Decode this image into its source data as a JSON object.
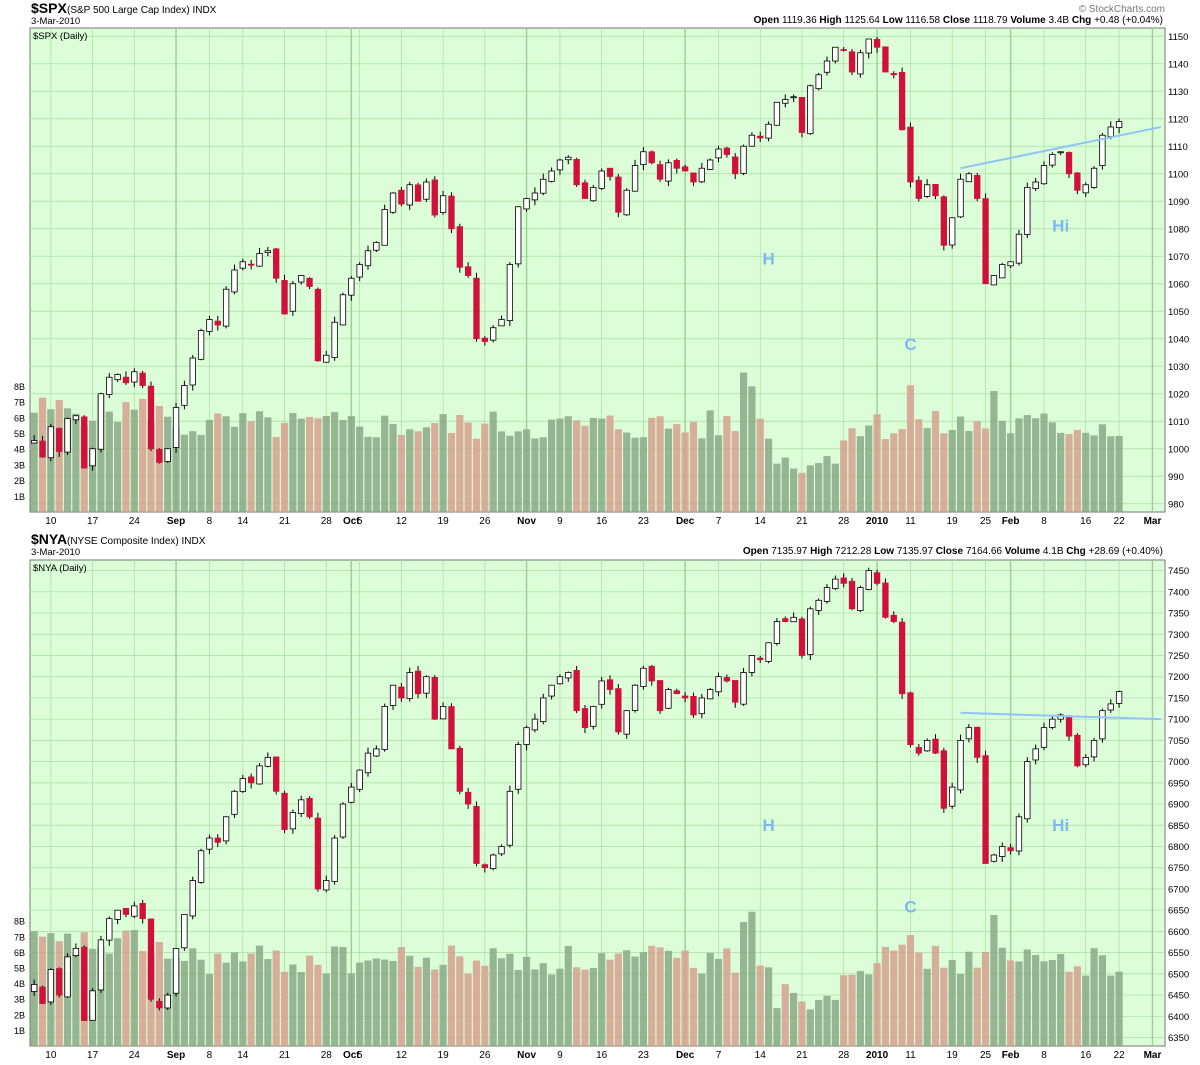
{
  "watermark": "© StockCharts.com",
  "colors": {
    "plot_bg": "#dbfdd7",
    "grid": "#a8dea0",
    "up_candle": "#ffffff",
    "down_candle": "#d1103c",
    "vol_up": "#8aa886",
    "vol_down": "#d6a08f",
    "trendline": "#8fc4f5",
    "annotation": "#7fb6ef"
  },
  "panels": [
    {
      "symbol": "$SPX",
      "name": "(S&P 500 Large Cap Index)",
      "exchange": "INDX",
      "date": "3-Mar-2010",
      "legend": "$SPX (Daily)",
      "quote": [
        {
          "label": "Open",
          "value": "1119.36"
        },
        {
          "label": "High",
          "value": "1125.64"
        },
        {
          "label": "Low",
          "value": "1116.58"
        },
        {
          "label": "Close",
          "value": "1118.79"
        },
        {
          "label": "Volume",
          "value": "3.4B"
        },
        {
          "label": "Chg",
          "value": "+0.48 (+0.04%)"
        }
      ],
      "annotations": [
        {
          "text": "H",
          "x": 88,
          "price": 1067
        },
        {
          "text": "C",
          "x": 105,
          "price": 1036
        },
        {
          "text": "Hi",
          "x": 123,
          "price": 1079
        }
      ]
    },
    {
      "symbol": "$NYA",
      "name": "(NYSE Composite Index)",
      "exchange": "INDX",
      "date": "3-Mar-2010",
      "legend": "$NYA (Daily)",
      "quote": [
        {
          "label": "Open",
          "value": "7135.97"
        },
        {
          "label": "High",
          "value": "7212.28"
        },
        {
          "label": "Low",
          "value": "7135.97"
        },
        {
          "label": "Close",
          "value": "7164.66"
        },
        {
          "label": "Volume",
          "value": "4.1B"
        },
        {
          "label": "Chg",
          "value": "+28.69 (+0.40%)"
        }
      ],
      "annotations": [
        {
          "text": "H",
          "x": 88,
          "price": 6837
        },
        {
          "text": "C",
          "x": 105,
          "price": 6645
        },
        {
          "text": "Hi",
          "x": 123,
          "price": 6837
        }
      ]
    }
  ],
  "chart_data": [
    {
      "type": "candlestick",
      "symbol": "$SPX",
      "x_tick_labels": [
        "10",
        "17",
        "24",
        "Sep",
        "8",
        "14",
        "21",
        "28",
        "Oct",
        "5",
        "12",
        "19",
        "26",
        "Nov",
        "9",
        "16",
        "23",
        "Dec",
        "7",
        "14",
        "21",
        "28",
        "2010",
        "11",
        "19",
        "25",
        "Feb",
        "8",
        "16",
        "22",
        "Mar"
      ],
      "x_tick_positions": [
        2,
        7,
        12,
        17,
        21,
        25,
        30,
        35,
        38,
        39,
        44,
        49,
        54,
        59,
        63,
        68,
        73,
        78,
        82,
        87,
        92,
        97,
        101,
        105,
        110,
        114,
        117,
        121,
        126,
        130,
        134
      ],
      "major_ticks": [
        "Sep",
        "Oct",
        "Nov",
        "Dec",
        "2010",
        "Feb",
        "Mar"
      ],
      "y_ticks": [
        980,
        990,
        1000,
        1010,
        1020,
        1030,
        1040,
        1050,
        1060,
        1070,
        1080,
        1090,
        1100,
        1110,
        1120,
        1130,
        1140,
        1150
      ],
      "ylim": [
        977,
        1153
      ],
      "volume_ticks": [
        "1B",
        "2B",
        "3B",
        "4B",
        "5B",
        "6B",
        "7B",
        "8B"
      ],
      "volume_max": 10,
      "trendline": [
        {
          "x": 111,
          "price": 1102
        },
        {
          "x": 135,
          "price": 1117
        }
      ],
      "closes": [
        1003,
        997,
        1008,
        999,
        1011,
        1012,
        993,
        1000,
        1020,
        1026,
        1027,
        1024,
        1028,
        1023,
        1000,
        995,
        1000,
        1015,
        1023,
        1033,
        1043,
        1047,
        1045,
        1058,
        1065,
        1068,
        1067,
        1071,
        1072,
        1062,
        1049,
        1060,
        1063,
        1059,
        1032,
        1034,
        1046,
        1056,
        1062,
        1067,
        1072,
        1075,
        1087,
        1093,
        1089,
        1096,
        1090,
        1097,
        1085,
        1092,
        1080,
        1066,
        1063,
        1040,
        1039,
        1044,
        1047,
        1067,
        1088,
        1091,
        1093,
        1098,
        1101,
        1105,
        1106,
        1096,
        1091,
        1095,
        1101,
        1099,
        1086,
        1094,
        1103,
        1108,
        1104,
        1098,
        1104,
        1102,
        1101,
        1097,
        1102,
        1105,
        1109,
        1107,
        1100,
        1110,
        1114,
        1113,
        1118,
        1126,
        1127,
        1128,
        1115,
        1132,
        1136,
        1141,
        1146,
        1145,
        1137,
        1144,
        1149,
        1146,
        1137,
        1136,
        1116,
        1097,
        1091,
        1096,
        1092,
        1074,
        1084,
        1098,
        1100,
        1091,
        1060,
        1063,
        1067,
        1068,
        1078,
        1095,
        1097,
        1103,
        1107,
        1108,
        1100,
        1094,
        1096,
        1102,
        1114,
        1117,
        1119
      ]
    },
    {
      "type": "candlestick",
      "symbol": "$NYA",
      "x_tick_labels": [
        "10",
        "17",
        "24",
        "Sep",
        "8",
        "14",
        "21",
        "28",
        "Oct",
        "5",
        "12",
        "19",
        "26",
        "Nov",
        "9",
        "16",
        "23",
        "Dec",
        "7",
        "14",
        "21",
        "28",
        "2010",
        "11",
        "19",
        "25",
        "Feb",
        "8",
        "16",
        "22",
        "Mar"
      ],
      "x_tick_positions": [
        2,
        7,
        12,
        17,
        21,
        25,
        30,
        35,
        38,
        39,
        44,
        49,
        54,
        59,
        63,
        68,
        73,
        78,
        82,
        87,
        92,
        97,
        101,
        105,
        110,
        114,
        117,
        121,
        126,
        130,
        134
      ],
      "major_ticks": [
        "Sep",
        "Oct",
        "Nov",
        "Dec",
        "2010",
        "Feb",
        "Mar"
      ],
      "y_ticks": [
        6350,
        6400,
        6450,
        6500,
        6550,
        6600,
        6650,
        6700,
        6750,
        6800,
        6850,
        6900,
        6950,
        7000,
        7050,
        7100,
        7150,
        7200,
        7250,
        7300,
        7350,
        7400,
        7450
      ],
      "ylim": [
        6330,
        7475
      ],
      "volume_ticks": [
        "1B",
        "2B",
        "3B",
        "4B",
        "5B",
        "6B",
        "7B",
        "8B"
      ],
      "volume_max": 10,
      "trendline": [
        {
          "x": 111,
          "price": 7115
        },
        {
          "x": 135,
          "price": 7100
        }
      ],
      "closes": [
        6475,
        6430,
        6510,
        6450,
        6540,
        6560,
        6390,
        6460,
        6580,
        6630,
        6650,
        6640,
        6660,
        6630,
        6440,
        6420,
        6450,
        6560,
        6640,
        6720,
        6790,
        6820,
        6810,
        6870,
        6930,
        6960,
        6950,
        6990,
        7010,
        6930,
        6840,
        6880,
        6910,
        6870,
        6700,
        6720,
        6820,
        6900,
        6940,
        6980,
        7020,
        7030,
        7130,
        7180,
        7150,
        7210,
        7160,
        7200,
        7100,
        7130,
        7030,
        6930,
        6900,
        6760,
        6750,
        6780,
        6800,
        6930,
        7040,
        7080,
        7100,
        7150,
        7180,
        7200,
        7210,
        7120,
        7080,
        7130,
        7190,
        7170,
        7070,
        7120,
        7180,
        7220,
        7190,
        7120,
        7170,
        7160,
        7150,
        7110,
        7150,
        7170,
        7200,
        7190,
        7140,
        7210,
        7250,
        7240,
        7280,
        7330,
        7330,
        7340,
        7250,
        7360,
        7380,
        7410,
        7430,
        7420,
        7360,
        7410,
        7450,
        7420,
        7340,
        7330,
        7160,
        7040,
        7020,
        7050,
        7020,
        6890,
        6940,
        7050,
        7080,
        7010,
        6760,
        6780,
        6800,
        6790,
        6870,
        7000,
        7030,
        7080,
        7100,
        7110,
        7060,
        6990,
        7010,
        7050,
        7120,
        7136,
        7165
      ]
    }
  ]
}
